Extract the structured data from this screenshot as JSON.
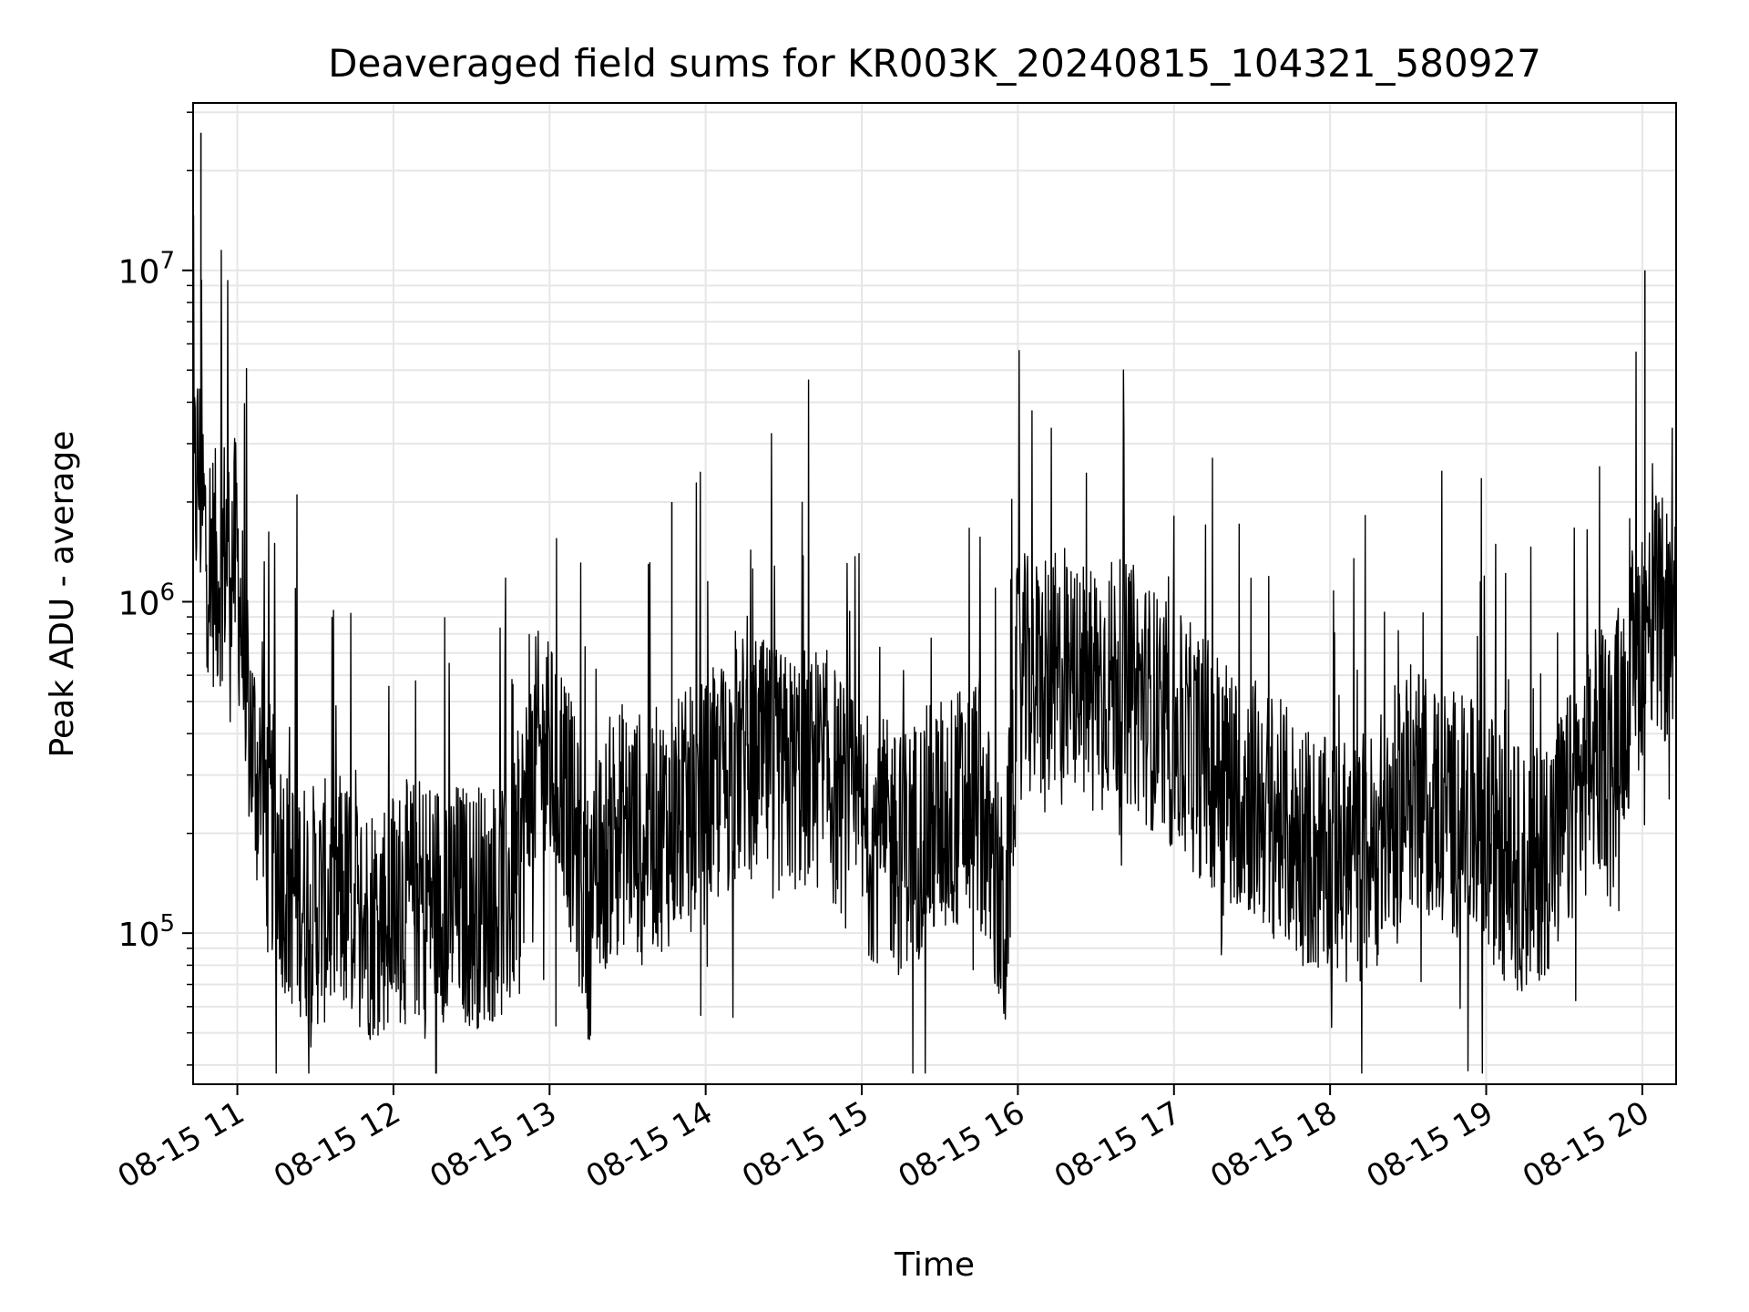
{
  "chart_data": {
    "type": "line",
    "title": "Deaveraged field sums for KR003K_20240815_104321_580927",
    "xlabel": "Time",
    "ylabel": "Peak ADU - average",
    "yscale": "log",
    "ylim": [
      35000,
      32000000
    ],
    "xlim": [
      "2024-08-15 10:43",
      "2024-08-15 20:13"
    ],
    "grid": true,
    "legend": "none",
    "line_color": "#000000",
    "x_ticks": [
      {
        "value": "2024-08-15 11:00",
        "label": "08-15 11"
      },
      {
        "value": "2024-08-15 12:00",
        "label": "08-15 12"
      },
      {
        "value": "2024-08-15 13:00",
        "label": "08-15 13"
      },
      {
        "value": "2024-08-15 14:00",
        "label": "08-15 14"
      },
      {
        "value": "2024-08-15 15:00",
        "label": "08-15 15"
      },
      {
        "value": "2024-08-15 16:00",
        "label": "08-15 16"
      },
      {
        "value": "2024-08-15 17:00",
        "label": "08-15 17"
      },
      {
        "value": "2024-08-15 18:00",
        "label": "08-15 18"
      },
      {
        "value": "2024-08-15 19:00",
        "label": "08-15 19"
      },
      {
        "value": "2024-08-15 20:00",
        "label": "08-15 20"
      }
    ],
    "y_ticks": [
      {
        "value": 100000,
        "base": "10",
        "exp": "5"
      },
      {
        "value": 1000000,
        "base": "10",
        "exp": "6"
      },
      {
        "value": 10000000,
        "base": "10",
        "exp": "7"
      }
    ],
    "series": [
      {
        "x": [
          "2024-08-15 10:43",
          "2024-08-15 10:45",
          "2024-08-15 10:48",
          "2024-08-15 10:52",
          "2024-08-15 10:56",
          "2024-08-15 11:00",
          "2024-08-15 11:03",
          "2024-08-15 11:06",
          "2024-08-15 11:10",
          "2024-08-15 11:15",
          "2024-08-15 11:20",
          "2024-08-15 11:30",
          "2024-08-15 11:40",
          "2024-08-15 11:50",
          "2024-08-15 12:00",
          "2024-08-15 12:15",
          "2024-08-15 12:30",
          "2024-08-15 12:45",
          "2024-08-15 12:55",
          "2024-08-15 13:05",
          "2024-08-15 13:15",
          "2024-08-15 13:25",
          "2024-08-15 13:35",
          "2024-08-15 13:45",
          "2024-08-15 14:00",
          "2024-08-15 14:15",
          "2024-08-15 14:30",
          "2024-08-15 14:45",
          "2024-08-15 15:00",
          "2024-08-15 15:15",
          "2024-08-15 15:30",
          "2024-08-15 15:45",
          "2024-08-15 15:55",
          "2024-08-15 16:00",
          "2024-08-15 16:15",
          "2024-08-15 16:30",
          "2024-08-15 16:45",
          "2024-08-15 17:00",
          "2024-08-15 17:15",
          "2024-08-15 17:30",
          "2024-08-15 17:45",
          "2024-08-15 18:00",
          "2024-08-15 18:15",
          "2024-08-15 18:30",
          "2024-08-15 18:45",
          "2024-08-15 19:00",
          "2024-08-15 19:15",
          "2024-08-15 19:30",
          "2024-08-15 19:40",
          "2024-08-15 19:50",
          "2024-08-15 20:00",
          "2024-08-15 20:05",
          "2024-08-15 20:10",
          "2024-08-15 20:13"
        ],
        "values": [
          2000000,
          2500000,
          1500000,
          1200000,
          1500000,
          1300000,
          600000,
          350000,
          250000,
          180000,
          140000,
          120000,
          130000,
          110000,
          120000,
          130000,
          120000,
          130000,
          350000,
          300000,
          110000,
          220000,
          200000,
          210000,
          250000,
          350000,
          300000,
          320000,
          200000,
          180000,
          220000,
          260000,
          100000,
          600000,
          550000,
          600000,
          550000,
          400000,
          320000,
          260000,
          200000,
          160000,
          170000,
          280000,
          240000,
          200000,
          150000,
          210000,
          320000,
          400000,
          800000,
          900000,
          850000,
          750000
        ]
      }
    ],
    "spikes": [
      {
        "x": "2024-08-15 10:46",
        "value": 26000000
      },
      {
        "x": "2024-08-15 13:47",
        "value": 2000000
      },
      {
        "x": "2024-08-15 20:01",
        "value": 10000000
      }
    ]
  }
}
